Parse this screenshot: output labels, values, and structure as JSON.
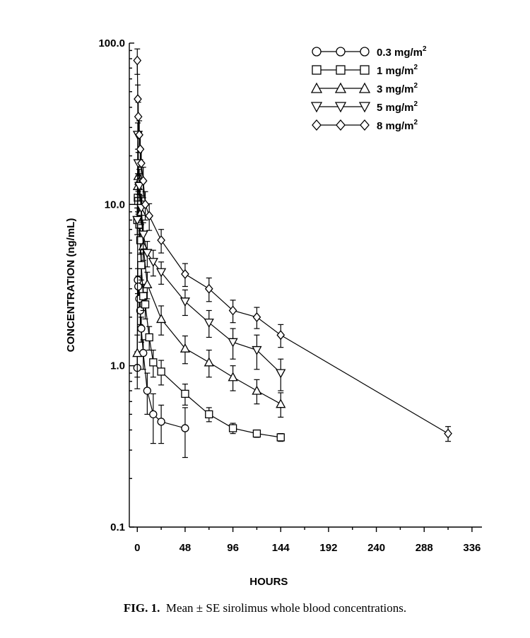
{
  "caption": {
    "label": "FIG. 1.",
    "text": "Mean ± SE sirolimus whole blood concentrations."
  },
  "chart_data": {
    "type": "line",
    "title": "",
    "xlabel": "HOURS",
    "ylabel": "CONCENTRATION (ng/mL)",
    "xlim": [
      -8,
      346
    ],
    "ylim": [
      0.1,
      100
    ],
    "yscale": "log",
    "xticks": [
      0,
      48,
      96,
      144,
      192,
      240,
      288,
      336
    ],
    "yticks": [
      {
        "value": 0.1,
        "label": "0.1"
      },
      {
        "value": 1,
        "label": "1.0"
      },
      {
        "value": 10,
        "label": "10.0"
      },
      {
        "value": 100,
        "label": "100.0"
      }
    ],
    "grid": false,
    "legend_position": "top-right",
    "series": [
      {
        "name": "0.3 mg/m",
        "name_sup": "2",
        "marker": "circle",
        "x": [
          0,
          0.5,
          1,
          2,
          3,
          4,
          6,
          10,
          16,
          24,
          48
        ],
        "y": [
          0.97,
          3.4,
          3.1,
          2.6,
          2.2,
          1.7,
          1.2,
          0.7,
          0.5,
          0.45,
          0.41
        ],
        "err": [
          0.25,
          0.6,
          0.5,
          0.45,
          0.4,
          0.3,
          0.25,
          0.2,
          0.17,
          0.12,
          0.14
        ]
      },
      {
        "name": "1 mg/m",
        "name_sup": "2",
        "marker": "square",
        "x": [
          0,
          0.5,
          1,
          2,
          3,
          4,
          6,
          8,
          12,
          16,
          24,
          48,
          72,
          96,
          120,
          144
        ],
        "y": [
          8.0,
          11.0,
          10.5,
          7.5,
          6.0,
          4.2,
          2.7,
          2.4,
          1.5,
          1.05,
          0.92,
          0.67,
          0.5,
          0.41,
          0.38,
          0.36
        ],
        "err": [
          1.5,
          2.0,
          1.8,
          1.4,
          1.1,
          0.8,
          0.5,
          0.45,
          0.25,
          0.2,
          0.16,
          0.1,
          0.05,
          0.03,
          0.02,
          0.02
        ]
      },
      {
        "name": "3 mg/m",
        "name_sup": "2",
        "marker": "triangle-up",
        "x": [
          0,
          0.5,
          1,
          2,
          4,
          6,
          10,
          24,
          48,
          72,
          96,
          120,
          144
        ],
        "y": [
          1.2,
          13.0,
          15.0,
          14.0,
          9.0,
          5.5,
          3.2,
          1.95,
          1.28,
          1.05,
          0.85,
          0.7,
          0.58
        ],
        "err": [
          0.35,
          2.5,
          3.0,
          2.5,
          1.5,
          1.0,
          0.6,
          0.4,
          0.25,
          0.2,
          0.15,
          0.12,
          0.1
        ]
      },
      {
        "name": "5 mg/m",
        "name_sup": "2",
        "marker": "triangle-down",
        "x": [
          0,
          0.5,
          1,
          2,
          4,
          6,
          10,
          16,
          24,
          48,
          72,
          96,
          120,
          144
        ],
        "y": [
          8.0,
          27.0,
          18.0,
          13.0,
          9.5,
          6.5,
          5.0,
          4.4,
          3.8,
          2.5,
          1.85,
          1.4,
          1.25,
          0.9
        ],
        "err": [
          1.5,
          5.0,
          3.0,
          2.5,
          1.8,
          1.2,
          0.9,
          0.8,
          0.6,
          0.45,
          0.35,
          0.3,
          0.3,
          0.2
        ]
      },
      {
        "name": "8 mg/m",
        "name_sup": "2",
        "marker": "diamond",
        "x": [
          0,
          0.5,
          1,
          2,
          3,
          4,
          6,
          8,
          12,
          24,
          48,
          72,
          96,
          120,
          144,
          312
        ],
        "y": [
          78.0,
          45.0,
          35.0,
          27.0,
          22.0,
          18.0,
          14.0,
          10.0,
          8.5,
          6.0,
          3.7,
          3.0,
          2.2,
          2.0,
          1.55,
          0.38
        ],
        "err": [
          14.0,
          10.0,
          8.0,
          6.0,
          5.0,
          4.0,
          3.0,
          2.0,
          1.6,
          1.0,
          0.6,
          0.5,
          0.35,
          0.3,
          0.25,
          0.04
        ]
      }
    ]
  }
}
